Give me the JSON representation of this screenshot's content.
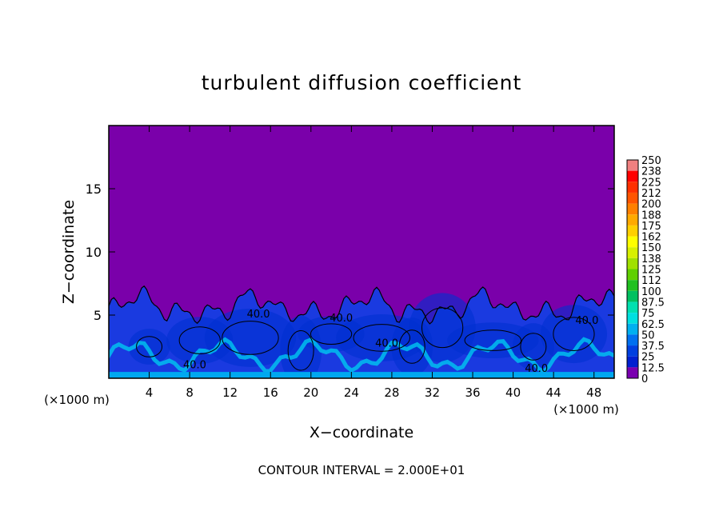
{
  "chart_data": {
    "type": "heatmap",
    "title": "turbulent diffusion coefficient",
    "xlabel": "X−coordinate",
    "ylabel": "Z−coordinate",
    "x_unit": "(×1000 m)",
    "x_unit_right": "(×1000 m)",
    "xlim": [
      0,
      50
    ],
    "ylim": [
      0,
      20
    ],
    "x_ticks": [
      4,
      8,
      12,
      16,
      20,
      24,
      28,
      32,
      36,
      40,
      44,
      48
    ],
    "y_ticks": [
      5,
      10,
      15
    ],
    "footer": "CONTOUR INTERVAL = 2.000E+01",
    "contour_interval": 20,
    "contour_labels": [
      {
        "text": "40.0",
        "x": 8.5,
        "z": 0.8
      },
      {
        "text": "40.0",
        "x": 14.8,
        "z": 4.8
      },
      {
        "text": "40.0",
        "x": 23.0,
        "z": 4.5
      },
      {
        "text": "40.0",
        "x": 27.5,
        "z": 2.5
      },
      {
        "text": "40.0",
        "x": 42.3,
        "z": 0.5
      },
      {
        "text": "40.0",
        "x": 47.3,
        "z": 4.3
      }
    ],
    "colorbar": {
      "labels": [
        "250",
        "238",
        "225",
        "212",
        "200",
        "188",
        "175",
        "162",
        "150",
        "138",
        "125",
        "112",
        "100",
        "87.5",
        "75",
        "62.5",
        "50",
        "37.5",
        "25",
        "12.5",
        "0"
      ],
      "colors": [
        "#f08080",
        "#ff0000",
        "#ff3000",
        "#ff5500",
        "#ff8000",
        "#ffaa00",
        "#ffd000",
        "#ffff00",
        "#d8f000",
        "#a0e000",
        "#60d000",
        "#20c020",
        "#00c060",
        "#00e0b0",
        "#00e0e0",
        "#00b0f0",
        "#0070f0",
        "#0040e0",
        "#0020d0",
        "#2010b0",
        "#7a00b0"
      ]
    },
    "colors": {
      "background_field": "#7a00aa",
      "low_layer": "#1a3ae0",
      "contour_line": "#000000"
    }
  }
}
